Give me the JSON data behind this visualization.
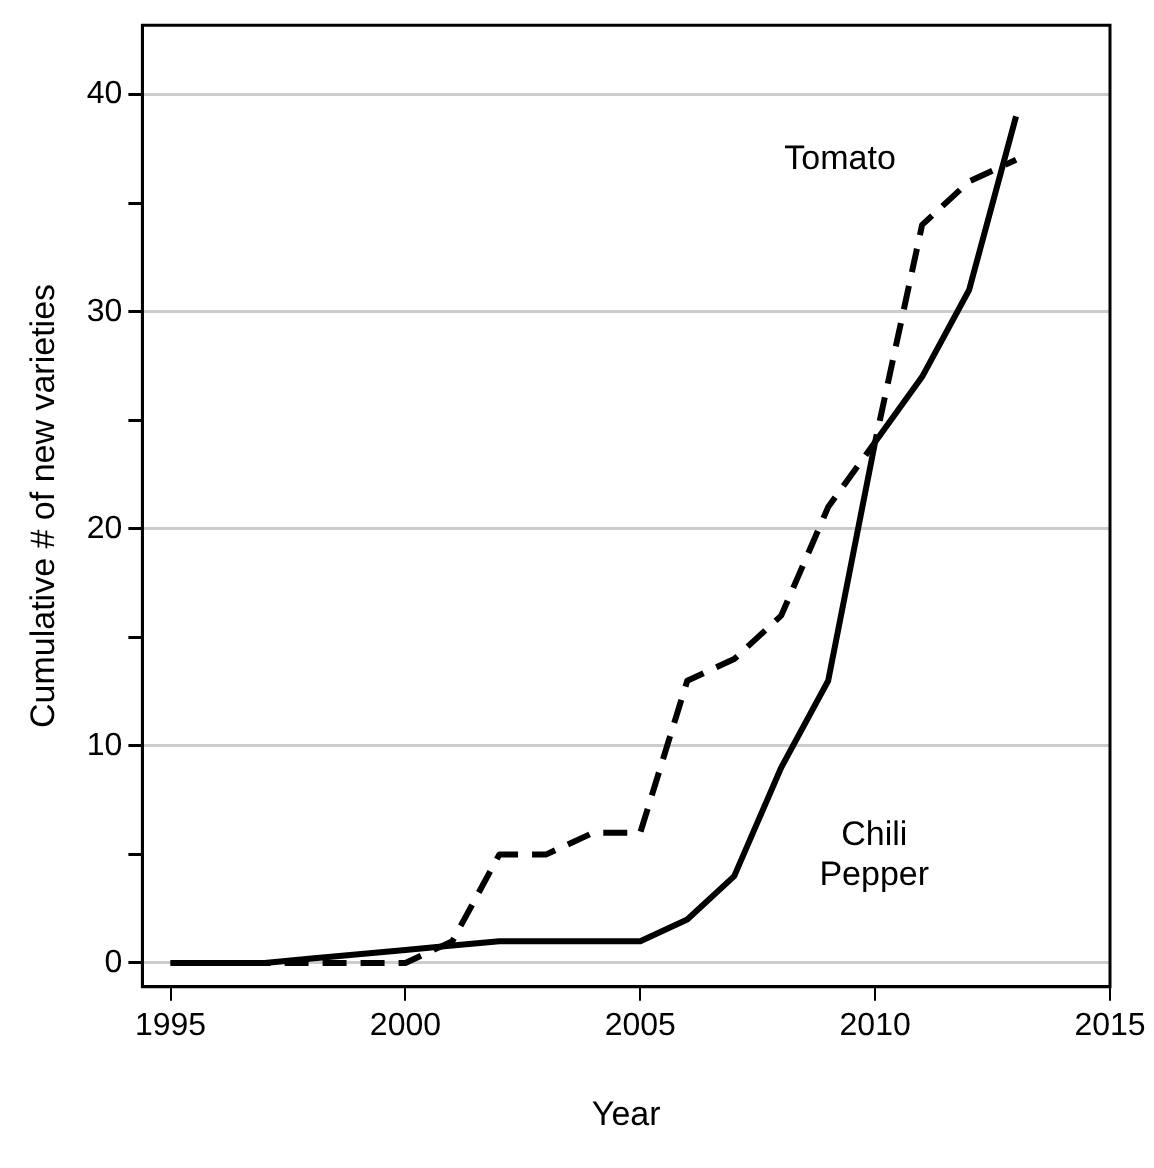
{
  "chart_data": {
    "type": "line",
    "xlabel": "Year",
    "ylabel": "Cumulative # of new varieties",
    "x": [
      1995,
      1996,
      1997,
      1998,
      1999,
      2000,
      2001,
      2002,
      2003,
      2004,
      2005,
      2006,
      2007,
      2008,
      2009,
      2010,
      2011,
      2012,
      2013
    ],
    "series": [
      {
        "name": "Tomato",
        "color": "#000000",
        "line_style": "dashed",
        "values": [
          0,
          0,
          0,
          0,
          0,
          0,
          1,
          5,
          5,
          6,
          6,
          13,
          14,
          16,
          21,
          24,
          34,
          36,
          37
        ]
      },
      {
        "name": "Chili\nPepper",
        "color": "#000000",
        "line_style": "solid",
        "values": [
          0,
          0,
          0,
          0.2,
          0.4,
          0.6,
          0.8,
          1,
          1,
          1,
          1,
          2,
          4,
          9,
          13,
          24,
          27,
          31,
          39
        ]
      }
    ],
    "xlim": [
      1994.4,
      2015
    ],
    "xticks": [
      1995,
      2000,
      2005,
      2010,
      2015
    ],
    "ylim": [
      -1.1,
      43.2
    ],
    "yticks": [
      0,
      {
        "value": 5,
        "label": null
      },
      10,
      {
        "value": 15,
        "label": null
      },
      20,
      {
        "value": 25,
        "label": null
      },
      30,
      {
        "value": 35,
        "label": null
      },
      40
    ],
    "grid": "y",
    "marker": "none",
    "legend": false
  }
}
